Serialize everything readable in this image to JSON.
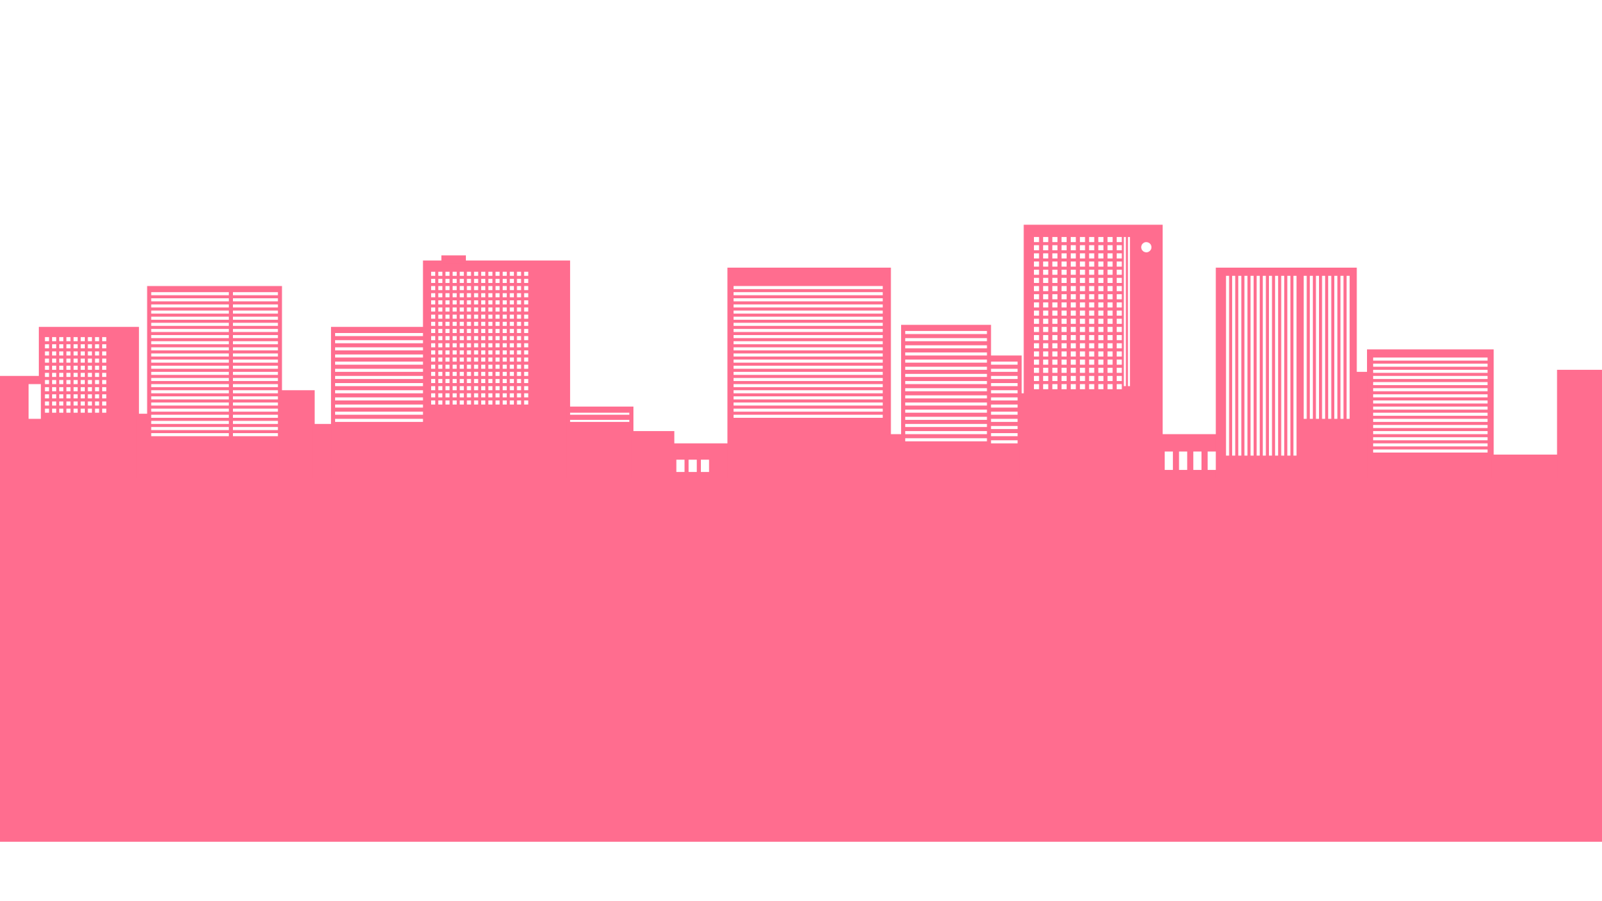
{
  "scene": {
    "subject": "city-skyline-silhouette",
    "colors": {
      "background": "#ffffff",
      "silhouette": "#ff6d8f",
      "windows": "#ffffff"
    }
  }
}
